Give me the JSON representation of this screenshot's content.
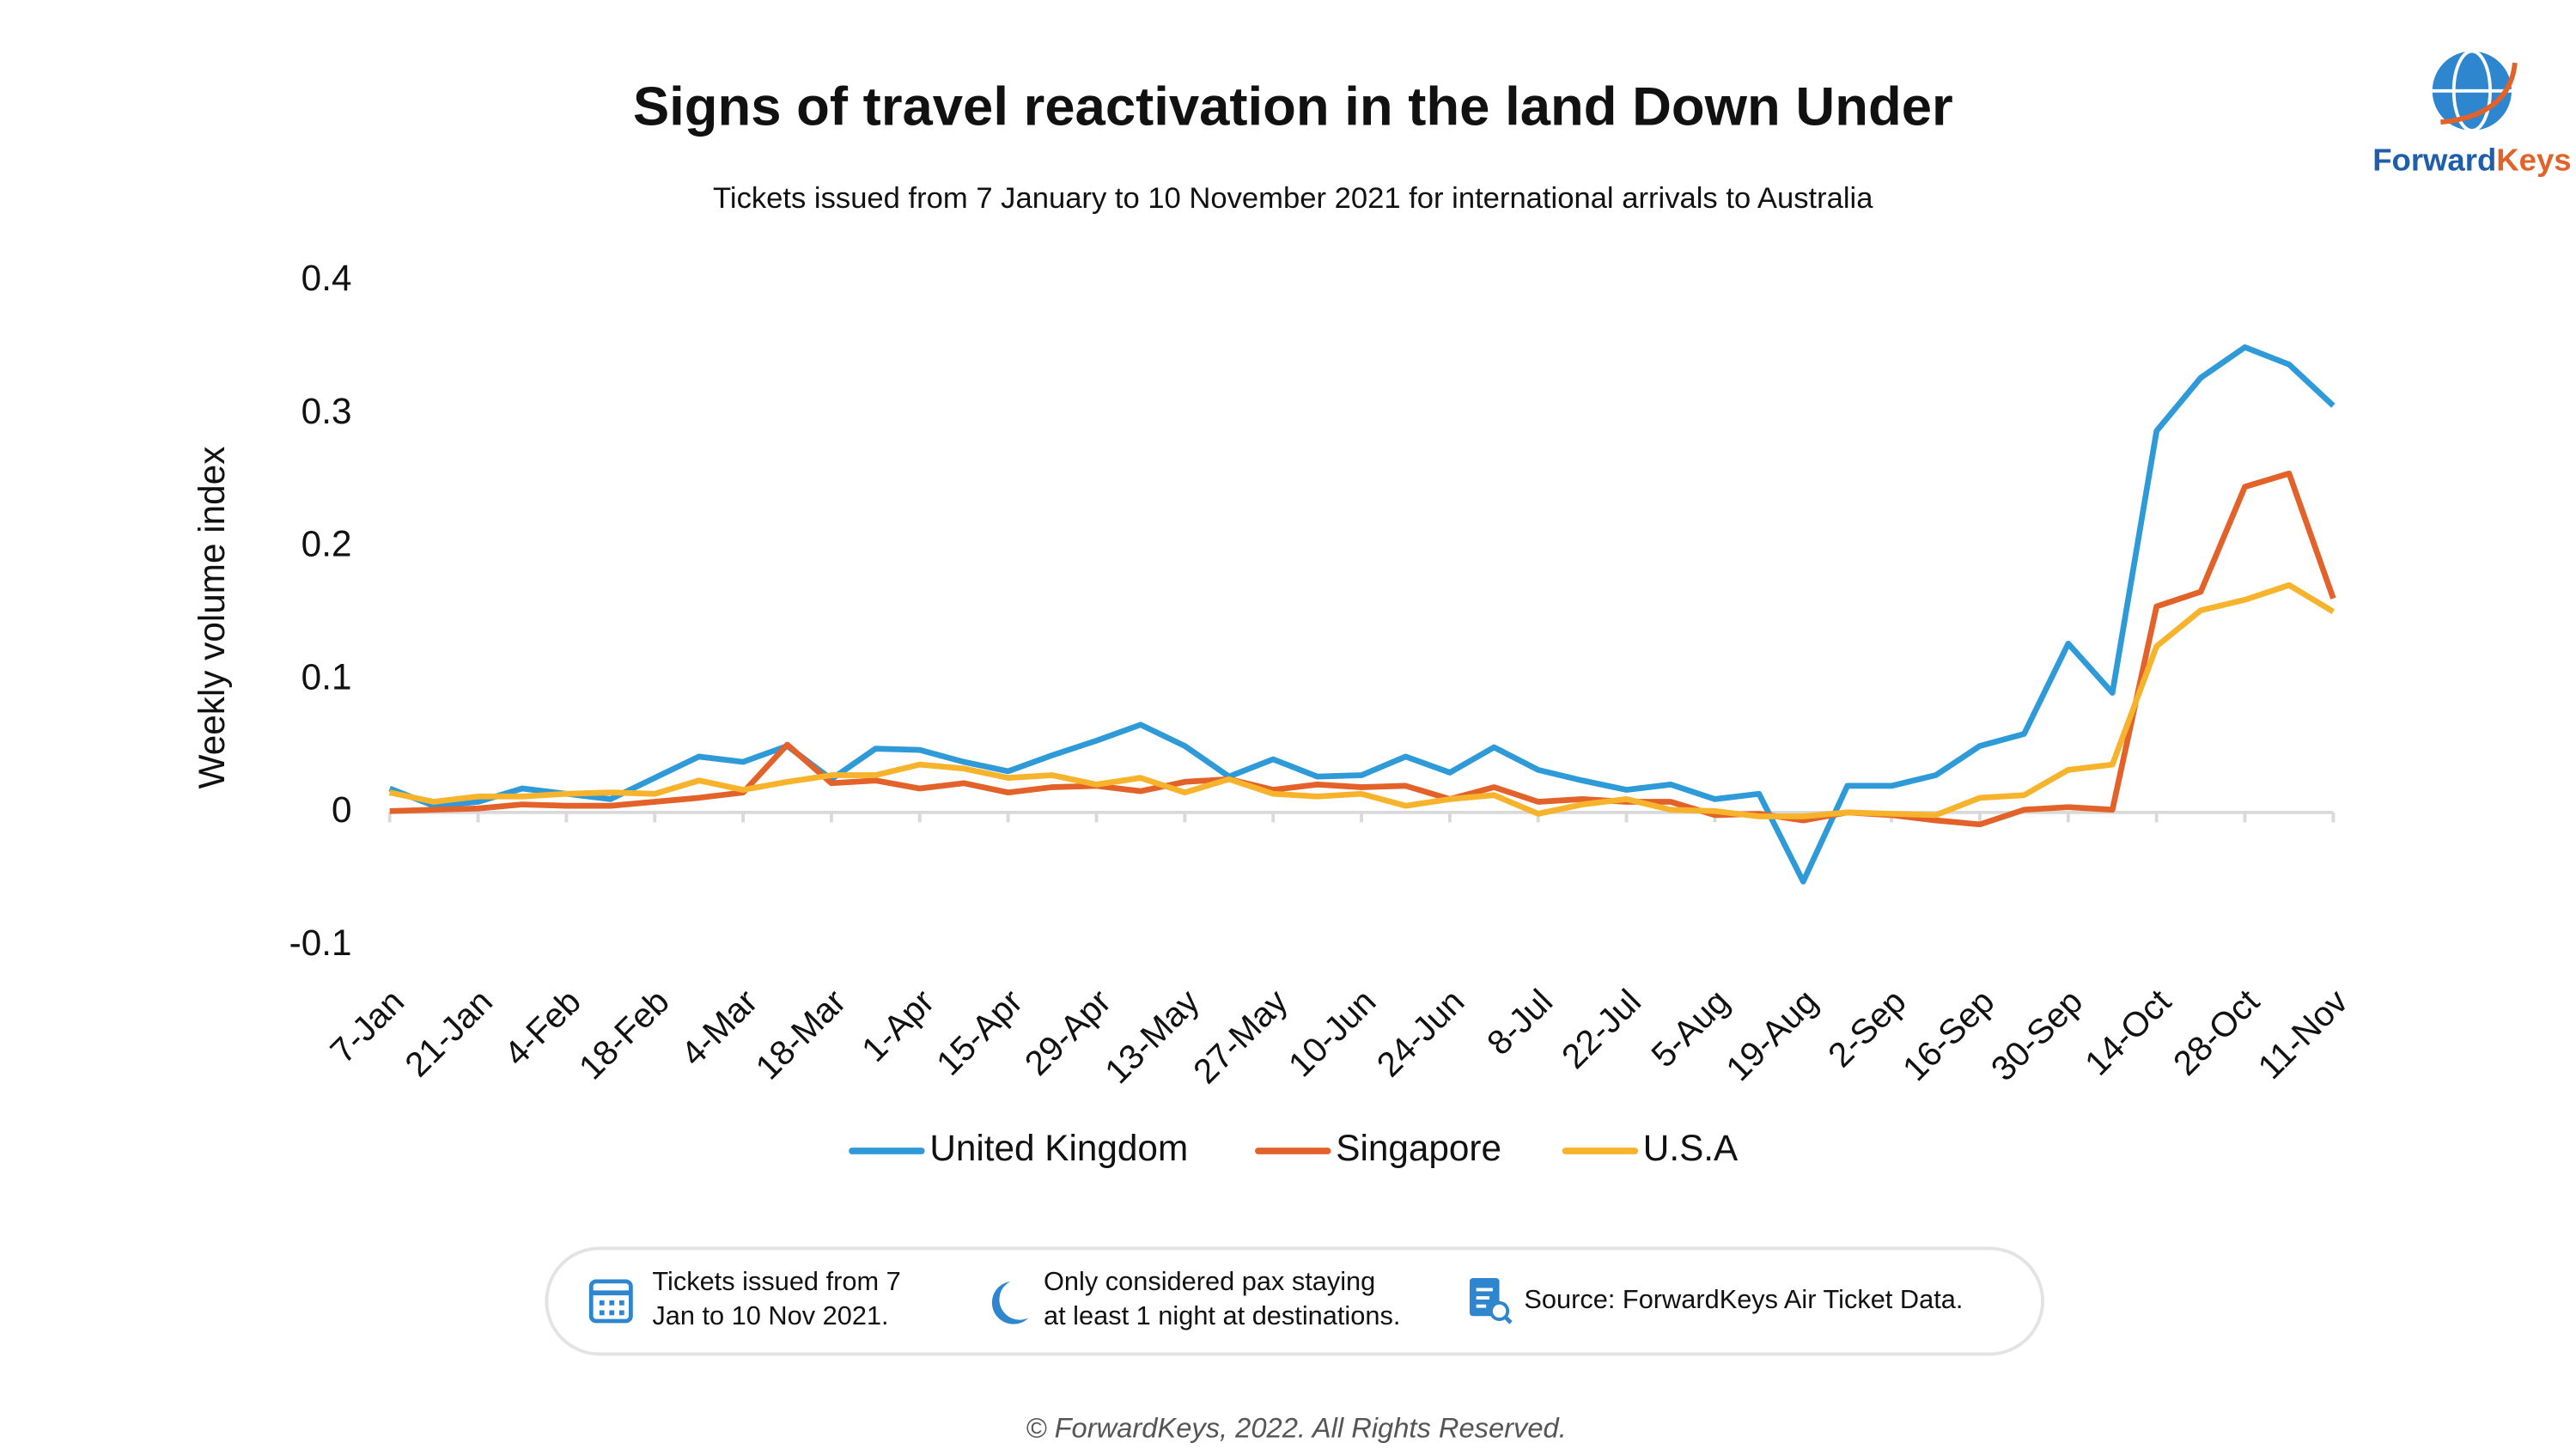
{
  "chart_data": {
    "type": "line",
    "title": "Signs of travel reactivation in the land Down Under",
    "subtitle": "Tickets issued from 7 January to 10 November 2021 for international arrivals to Australia",
    "y_label": "Weekly volume index",
    "categories": [
      "7-Jan",
      null,
      "21-Jan",
      null,
      "4-Feb",
      null,
      "18-Feb",
      null,
      "4-Mar",
      null,
      "18-Mar",
      null,
      "1-Apr",
      null,
      "15-Apr",
      null,
      "29-Apr",
      null,
      "13-May",
      null,
      "27-May",
      null,
      "10-Jun",
      null,
      "24-Jun",
      null,
      "8-Jul",
      null,
      "22-Jul",
      null,
      "5-Aug",
      null,
      "19-Aug",
      null,
      "2-Sep",
      null,
      "16-Sep",
      null,
      "30-Sep",
      null,
      "14-Oct",
      null,
      "28-Oct",
      null,
      "11-Nov"
    ],
    "series": [
      {
        "name": "United Kingdom",
        "color": "#2e9ad8",
        "values": [
          0.018,
          0.005,
          0.008,
          0.018,
          0.014,
          0.01,
          0.026,
          0.042,
          0.038,
          0.05,
          0.025,
          0.048,
          0.047,
          0.038,
          0.031,
          0.043,
          0.054,
          0.066,
          0.05,
          0.027,
          0.04,
          0.027,
          0.028,
          0.042,
          0.03,
          0.049,
          0.032,
          0.024,
          0.017,
          0.021,
          0.01,
          0.014,
          -0.052,
          0.02,
          0.02,
          0.028,
          0.05,
          0.059,
          0.127,
          0.09,
          0.287,
          0.327,
          0.35,
          0.337,
          0.306
        ]
      },
      {
        "name": "Singapore",
        "color": "#e2622a",
        "values": [
          0.001,
          0.002,
          0.003,
          0.006,
          0.005,
          0.005,
          0.008,
          0.011,
          0.015,
          0.051,
          0.022,
          0.024,
          0.018,
          0.022,
          0.015,
          0.019,
          0.02,
          0.016,
          0.023,
          0.025,
          0.017,
          0.021,
          0.019,
          0.02,
          0.01,
          0.019,
          0.008,
          0.01,
          0.008,
          0.008,
          -0.002,
          -0.001,
          -0.006,
          0.0,
          -0.002,
          -0.006,
          -0.009,
          0.002,
          0.004,
          0.002,
          0.155,
          0.166,
          0.245,
          0.255,
          0.161
        ]
      },
      {
        "name": "U.S.A",
        "color": "#f6b32b",
        "values": [
          0.015,
          0.008,
          0.012,
          0.012,
          0.014,
          0.015,
          0.014,
          0.024,
          0.017,
          0.023,
          0.028,
          0.028,
          0.036,
          0.033,
          0.026,
          0.028,
          0.021,
          0.026,
          0.015,
          0.025,
          0.014,
          0.012,
          0.014,
          0.005,
          0.01,
          0.013,
          -0.001,
          0.006,
          0.01,
          0.002,
          0.001,
          -0.003,
          -0.003,
          0.0,
          -0.001,
          -0.002,
          0.011,
          0.013,
          0.032,
          0.036,
          0.125,
          0.152,
          0.16,
          0.171,
          0.151
        ]
      }
    ],
    "ylim": [
      -0.1,
      0.4
    ],
    "yticks": [
      -0.1,
      0,
      0.1,
      0.2,
      0.3,
      0.4
    ],
    "grid": false,
    "legend": "bottom"
  },
  "info": [
    [
      "Tickets issued from 7",
      "Jan to 10 Nov 2021."
    ],
    [
      "Only considered pax staying",
      "at least 1 night at destinations."
    ],
    [
      "Source: ForwardKeys Air Ticket Data."
    ]
  ],
  "copyright": "© ForwardKeys, 2022. All Rights Reserved.",
  "logo": [
    "Forward",
    "Keys"
  ]
}
